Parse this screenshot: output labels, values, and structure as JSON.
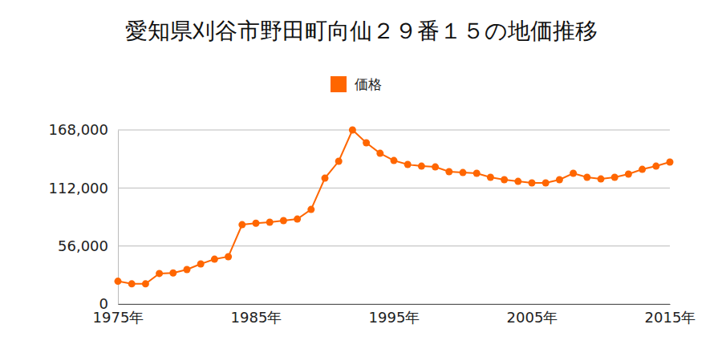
{
  "chart_data": {
    "type": "line",
    "title": "愛知県刈谷市野田町向仙２９番１５の地価推移",
    "x": [
      1975,
      1976,
      1977,
      1978,
      1979,
      1980,
      1981,
      1982,
      1983,
      1984,
      1985,
      1986,
      1987,
      1988,
      1989,
      1990,
      1991,
      1992,
      1993,
      1994,
      1995,
      1996,
      1997,
      1998,
      1999,
      2000,
      2001,
      2002,
      2003,
      2004,
      2005,
      2006,
      2007,
      2008,
      2009,
      2010,
      2011,
      2012,
      2013,
      2014,
      2015
    ],
    "series": [
      {
        "name": "価格",
        "color": "#ff6600",
        "marker": "circle",
        "values": [
          22000,
          19500,
          19500,
          29500,
          30000,
          33300,
          38700,
          43300,
          45700,
          76600,
          78000,
          79000,
          80500,
          82000,
          91300,
          121500,
          137800,
          168000,
          155600,
          145500,
          138500,
          134700,
          133100,
          132300,
          127700,
          126900,
          126200,
          122300,
          120000,
          118400,
          116900,
          116900,
          120000,
          126200,
          122300,
          120700,
          122300,
          125400,
          130000,
          133100,
          137000
        ]
      }
    ],
    "xlim": [
      1975,
      2015
    ],
    "xticks": [
      {
        "value": 1975,
        "label": "1975年"
      },
      {
        "value": 1985,
        "label": "1985年"
      },
      {
        "value": 1995,
        "label": "1995年"
      },
      {
        "value": 2005,
        "label": "2005年"
      },
      {
        "value": 2015,
        "label": "2015年"
      }
    ],
    "ylim": [
      0,
      168000
    ],
    "yticks": [
      0,
      {
        "value": 56000,
        "label": "56,000"
      },
      {
        "value": 112000,
        "label": "112,000"
      },
      {
        "value": 168000,
        "label": "168,000"
      }
    ],
    "grid": true,
    "legend": "top"
  }
}
